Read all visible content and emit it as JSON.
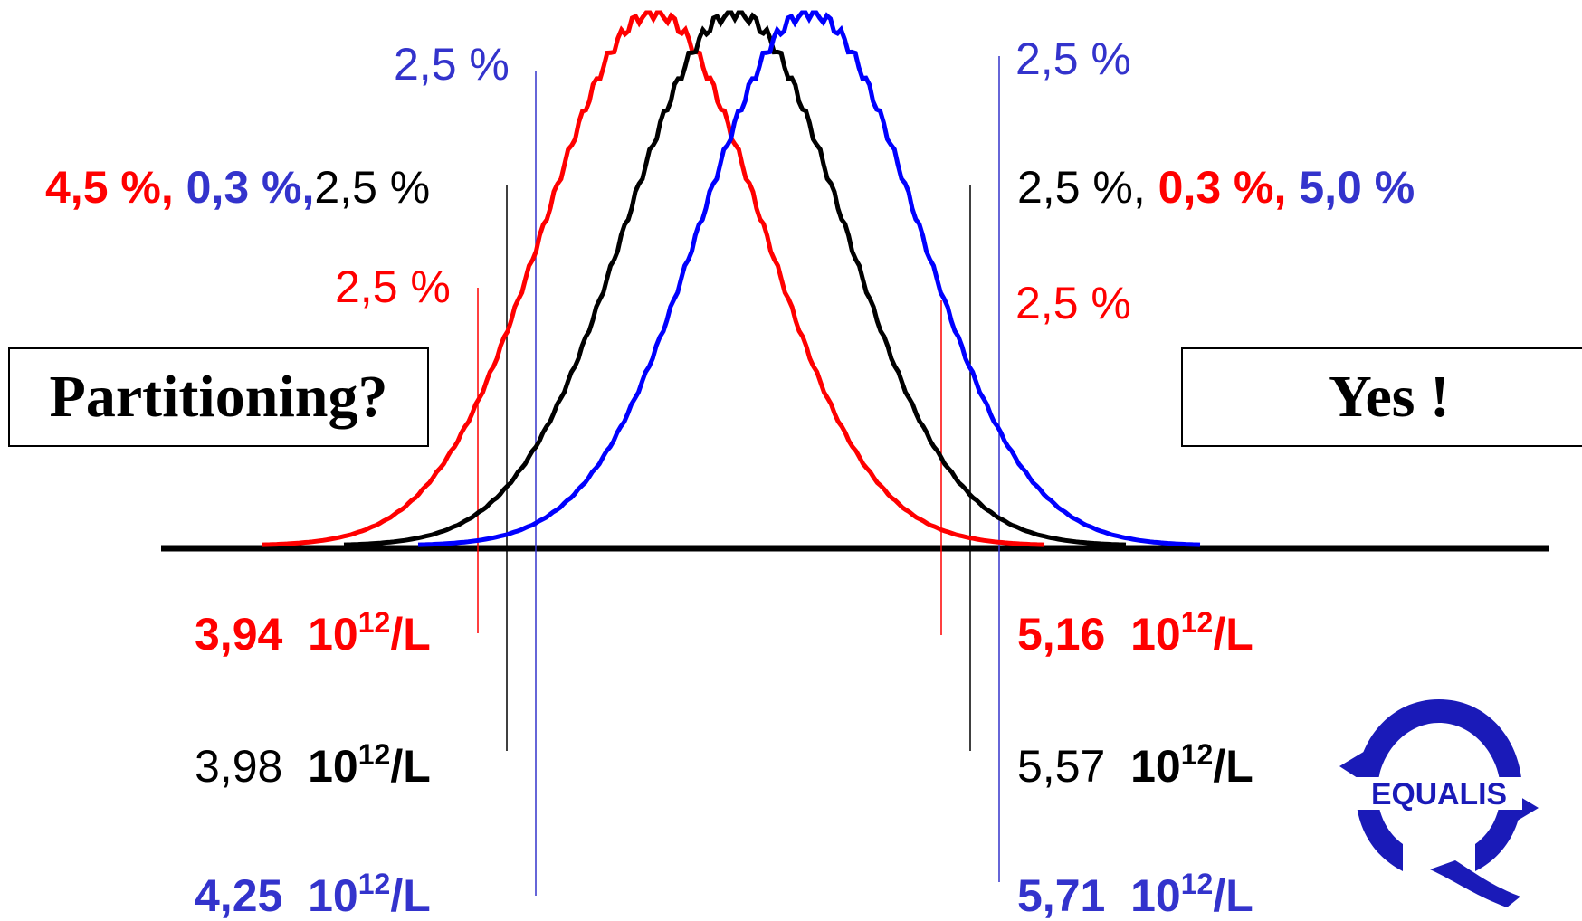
{
  "colors": {
    "red": "#ff0000",
    "blue": "#3333cc",
    "black": "#000000"
  },
  "left": {
    "blue_pct": "2,5 %",
    "black_row": {
      "red": "4,5 %,",
      "blue": "0,3 %,",
      "black": "2,5 %"
    },
    "red_pct": "2,5 %",
    "values": {
      "red": {
        "num": "3,94",
        "unit": "10",
        "exp": "12",
        "suffix": "/L"
      },
      "black": {
        "num": "3,98",
        "unit": "10",
        "exp": "12",
        "suffix": "/L"
      },
      "blue": {
        "num": "4,25",
        "unit": "10",
        "exp": "12",
        "suffix": "/L"
      }
    }
  },
  "right": {
    "blue_pct": "2,5 %",
    "black_row": {
      "black": "2,5 %,",
      "red": "0,3 %,",
      "blue": "5,0 %"
    },
    "red_pct": "2,5 %",
    "values": {
      "red": {
        "num": "5,16",
        "unit": "10",
        "exp": "12",
        "suffix": "/L"
      },
      "black": {
        "num": "5,57",
        "unit": "10",
        "exp": "12",
        "suffix": "/L"
      },
      "blue": {
        "num": "5,71",
        "unit": "10",
        "exp": "12",
        "suffix": "/L"
      }
    }
  },
  "boxes": {
    "question": "Partitioning?",
    "answer": "Yes !"
  },
  "logo": {
    "text": "EQUALIS",
    "icon": "equalis-logo-icon"
  },
  "curves": [
    {
      "name": "red",
      "center": 4.55
    },
    {
      "name": "black",
      "center": 4.775
    },
    {
      "name": "blue",
      "center": 4.98
    }
  ]
}
